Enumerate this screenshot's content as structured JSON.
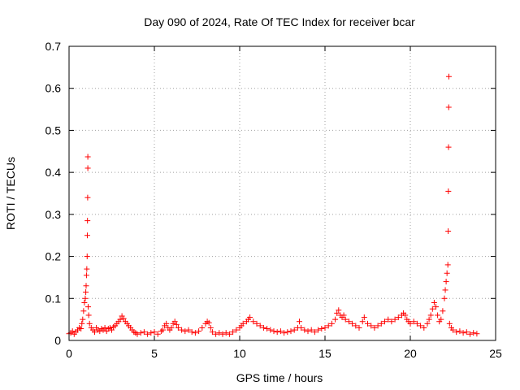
{
  "chart_data": {
    "type": "scatter",
    "title": "Day 090 of 2024, Rate Of TEC Index for receiver bcar",
    "xlabel": "GPS time / hours",
    "ylabel": "ROTI / TECUs",
    "xlim": [
      0,
      25
    ],
    "ylim": [
      0,
      0.7
    ],
    "xticks": [
      "0",
      "5",
      "10",
      "15",
      "20",
      "25"
    ],
    "yticks": [
      "0",
      "0.1",
      "0.2",
      "0.3",
      "0.4",
      "0.5",
      "0.6",
      "0.7"
    ],
    "grid": true,
    "marker": "plus",
    "color": "#ff0000",
    "series": [
      {
        "values": [
          [
            0.0,
            0.016
          ],
          [
            0.1,
            0.018
          ],
          [
            0.2,
            0.022
          ],
          [
            0.3,
            0.015
          ],
          [
            0.4,
            0.02
          ],
          [
            0.5,
            0.025
          ],
          [
            0.6,
            0.03
          ],
          [
            0.7,
            0.028
          ],
          [
            0.75,
            0.04
          ],
          [
            0.8,
            0.05
          ],
          [
            0.85,
            0.07
          ],
          [
            0.9,
            0.09
          ],
          [
            0.95,
            0.1
          ],
          [
            0.98,
            0.115
          ],
          [
            1.0,
            0.13
          ],
          [
            1.02,
            0.155
          ],
          [
            1.04,
            0.17
          ],
          [
            1.06,
            0.2
          ],
          [
            1.07,
            0.25
          ],
          [
            1.08,
            0.285
          ],
          [
            1.09,
            0.34
          ],
          [
            1.1,
            0.41
          ],
          [
            1.1,
            0.437
          ],
          [
            1.12,
            0.08
          ],
          [
            1.15,
            0.06
          ],
          [
            1.2,
            0.04
          ],
          [
            1.3,
            0.03
          ],
          [
            1.4,
            0.025
          ],
          [
            1.5,
            0.02
          ],
          [
            1.6,
            0.03
          ],
          [
            1.7,
            0.025
          ],
          [
            1.8,
            0.022
          ],
          [
            1.9,
            0.028
          ],
          [
            2.0,
            0.025
          ],
          [
            2.1,
            0.03
          ],
          [
            2.2,
            0.022
          ],
          [
            2.3,
            0.028
          ],
          [
            2.4,
            0.03
          ],
          [
            2.5,
            0.025
          ],
          [
            2.6,
            0.032
          ],
          [
            2.7,
            0.035
          ],
          [
            2.8,
            0.04
          ],
          [
            2.9,
            0.045
          ],
          [
            3.0,
            0.05
          ],
          [
            3.1,
            0.058
          ],
          [
            3.2,
            0.052
          ],
          [
            3.3,
            0.045
          ],
          [
            3.4,
            0.04
          ],
          [
            3.5,
            0.035
          ],
          [
            3.6,
            0.03
          ],
          [
            3.7,
            0.025
          ],
          [
            3.8,
            0.02
          ],
          [
            3.9,
            0.018
          ],
          [
            4.0,
            0.015
          ],
          [
            4.2,
            0.018
          ],
          [
            4.4,
            0.02
          ],
          [
            4.6,
            0.015
          ],
          [
            4.8,
            0.018
          ],
          [
            5.0,
            0.02
          ],
          [
            5.2,
            0.015
          ],
          [
            5.4,
            0.022
          ],
          [
            5.5,
            0.025
          ],
          [
            5.6,
            0.035
          ],
          [
            5.7,
            0.04
          ],
          [
            5.8,
            0.03
          ],
          [
            5.9,
            0.025
          ],
          [
            6.0,
            0.03
          ],
          [
            6.1,
            0.04
          ],
          [
            6.2,
            0.045
          ],
          [
            6.3,
            0.038
          ],
          [
            6.4,
            0.03
          ],
          [
            6.6,
            0.025
          ],
          [
            6.8,
            0.022
          ],
          [
            7.0,
            0.025
          ],
          [
            7.2,
            0.02
          ],
          [
            7.4,
            0.018
          ],
          [
            7.6,
            0.022
          ],
          [
            7.8,
            0.03
          ],
          [
            8.0,
            0.04
          ],
          [
            8.1,
            0.045
          ],
          [
            8.2,
            0.042
          ],
          [
            8.3,
            0.03
          ],
          [
            8.4,
            0.02
          ],
          [
            8.6,
            0.015
          ],
          [
            8.8,
            0.018
          ],
          [
            9.0,
            0.015
          ],
          [
            9.2,
            0.018
          ],
          [
            9.4,
            0.015
          ],
          [
            9.6,
            0.02
          ],
          [
            9.8,
            0.025
          ],
          [
            10.0,
            0.03
          ],
          [
            10.1,
            0.035
          ],
          [
            10.2,
            0.04
          ],
          [
            10.4,
            0.045
          ],
          [
            10.5,
            0.05
          ],
          [
            10.6,
            0.055
          ],
          [
            10.8,
            0.045
          ],
          [
            11.0,
            0.04
          ],
          [
            11.2,
            0.035
          ],
          [
            11.4,
            0.03
          ],
          [
            11.6,
            0.028
          ],
          [
            11.8,
            0.025
          ],
          [
            12.0,
            0.022
          ],
          [
            12.2,
            0.02
          ],
          [
            12.4,
            0.022
          ],
          [
            12.6,
            0.018
          ],
          [
            12.8,
            0.02
          ],
          [
            13.0,
            0.022
          ],
          [
            13.2,
            0.025
          ],
          [
            13.4,
            0.03
          ],
          [
            13.5,
            0.045
          ],
          [
            13.6,
            0.03
          ],
          [
            13.8,
            0.025
          ],
          [
            14.0,
            0.022
          ],
          [
            14.2,
            0.025
          ],
          [
            14.4,
            0.02
          ],
          [
            14.6,
            0.025
          ],
          [
            14.8,
            0.028
          ],
          [
            15.0,
            0.03
          ],
          [
            15.2,
            0.035
          ],
          [
            15.4,
            0.04
          ],
          [
            15.6,
            0.05
          ],
          [
            15.7,
            0.065
          ],
          [
            15.8,
            0.072
          ],
          [
            15.9,
            0.06
          ],
          [
            16.0,
            0.055
          ],
          [
            16.1,
            0.06
          ],
          [
            16.2,
            0.05
          ],
          [
            16.4,
            0.045
          ],
          [
            16.6,
            0.04
          ],
          [
            16.8,
            0.035
          ],
          [
            17.0,
            0.03
          ],
          [
            17.2,
            0.045
          ],
          [
            17.3,
            0.055
          ],
          [
            17.5,
            0.04
          ],
          [
            17.7,
            0.035
          ],
          [
            17.9,
            0.03
          ],
          [
            18.1,
            0.035
          ],
          [
            18.3,
            0.04
          ],
          [
            18.5,
            0.045
          ],
          [
            18.7,
            0.05
          ],
          [
            18.9,
            0.045
          ],
          [
            19.1,
            0.05
          ],
          [
            19.3,
            0.055
          ],
          [
            19.5,
            0.06
          ],
          [
            19.6,
            0.065
          ],
          [
            19.7,
            0.06
          ],
          [
            19.8,
            0.05
          ],
          [
            19.9,
            0.045
          ],
          [
            20.0,
            0.04
          ],
          [
            20.2,
            0.045
          ],
          [
            20.4,
            0.04
          ],
          [
            20.6,
            0.035
          ],
          [
            20.8,
            0.03
          ],
          [
            21.0,
            0.04
          ],
          [
            21.1,
            0.05
          ],
          [
            21.2,
            0.06
          ],
          [
            21.3,
            0.075
          ],
          [
            21.4,
            0.09
          ],
          [
            21.5,
            0.08
          ],
          [
            21.6,
            0.06
          ],
          [
            21.7,
            0.045
          ],
          [
            21.8,
            0.05
          ],
          [
            21.9,
            0.07
          ],
          [
            22.0,
            0.1
          ],
          [
            22.05,
            0.12
          ],
          [
            22.1,
            0.14
          ],
          [
            22.15,
            0.16
          ],
          [
            22.2,
            0.18
          ],
          [
            22.22,
            0.26
          ],
          [
            22.23,
            0.355
          ],
          [
            22.24,
            0.46
          ],
          [
            22.25,
            0.555
          ],
          [
            22.26,
            0.628
          ],
          [
            22.3,
            0.04
          ],
          [
            22.4,
            0.03
          ],
          [
            22.5,
            0.025
          ],
          [
            22.7,
            0.02
          ],
          [
            22.9,
            0.022
          ],
          [
            23.1,
            0.018
          ],
          [
            23.3,
            0.02
          ],
          [
            23.5,
            0.015
          ],
          [
            23.7,
            0.018
          ],
          [
            23.9,
            0.016
          ]
        ]
      }
    ]
  }
}
